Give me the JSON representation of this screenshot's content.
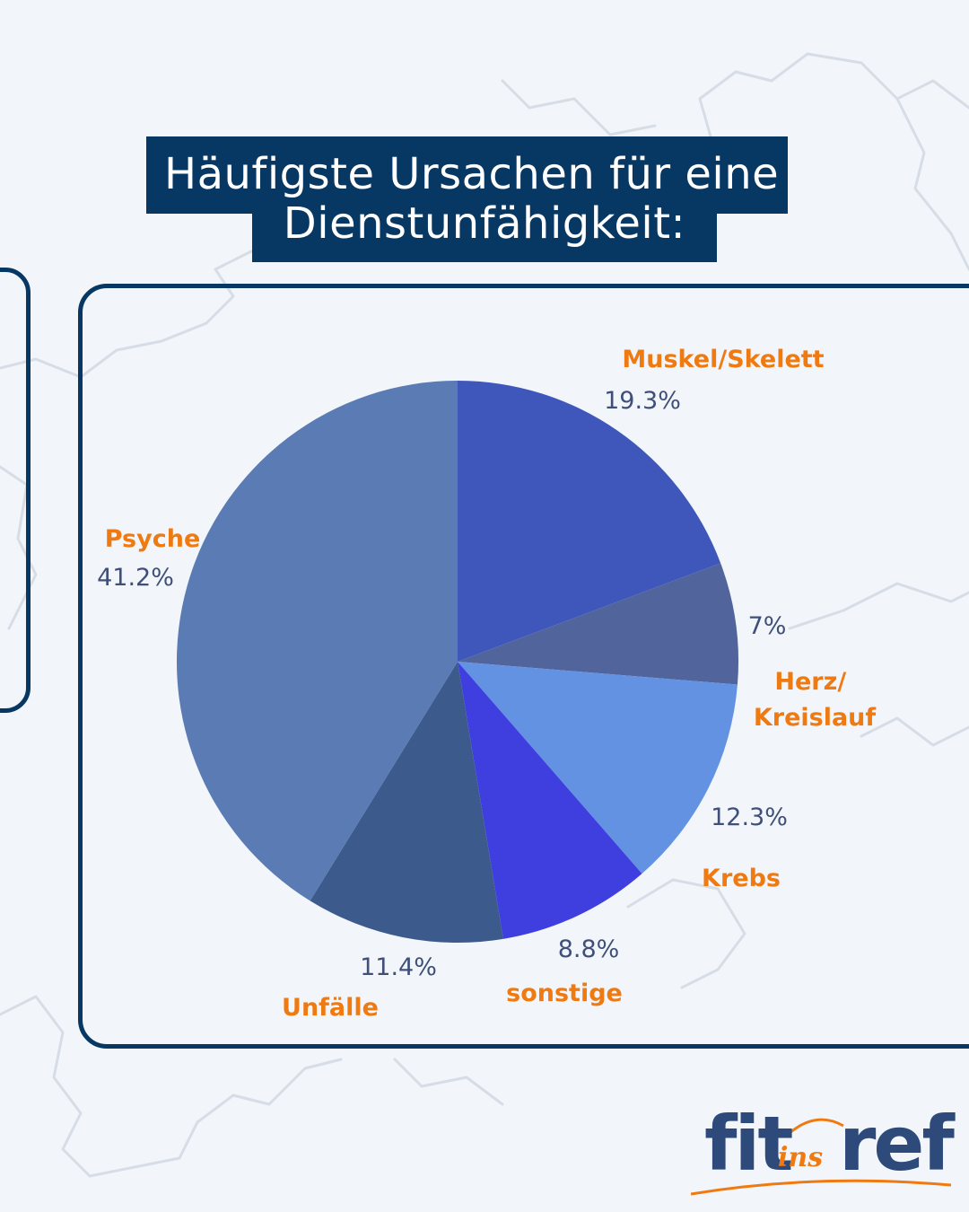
{
  "title": {
    "line1": "Häufigste Ursachen für eine",
    "line2": "Dienstunfähigkeit:"
  },
  "colors": {
    "title_bg": "#073763",
    "accent": "#f07a12",
    "value_text": "#3f4f7a",
    "border": "#073763"
  },
  "chart_data": {
    "type": "pie",
    "start_angle_deg": 0,
    "direction": "clockwise",
    "slices": [
      {
        "label": "Muskel/Skelett",
        "value": 19.3,
        "value_label": "19.3%",
        "color": "#3f57bb"
      },
      {
        "label": "Herz/ Kreislauf",
        "value": 7,
        "value_label": "7%",
        "color": "#51649c"
      },
      {
        "label": "Krebs",
        "value": 12.3,
        "value_label": "12.3%",
        "color": "#6392e3"
      },
      {
        "label": "sonstige",
        "value": 8.8,
        "value_label": "8.8%",
        "color": "#3f3fe0"
      },
      {
        "label": "Unfälle",
        "value": 11.4,
        "value_label": "11.4%",
        "color": "#3c5a8b"
      },
      {
        "label": "Psyche",
        "value": 41.2,
        "value_label": "41.2%",
        "color": "#5a7bb4"
      }
    ]
  },
  "logo": {
    "part1": "fit",
    "ins": "ins",
    "part2": "ref",
    "colors": {
      "main": "#2d4a7a",
      "ins": "#f07a12"
    }
  }
}
